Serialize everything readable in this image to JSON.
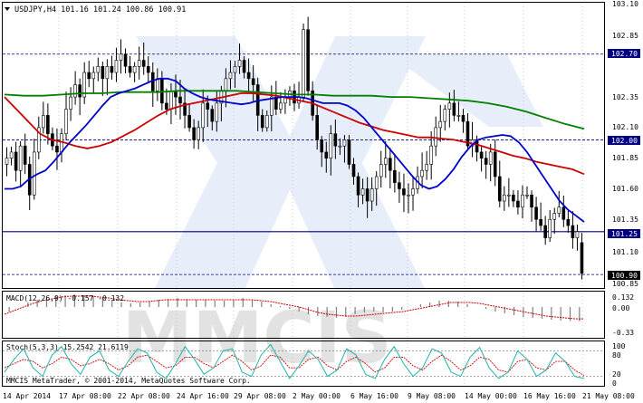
{
  "title": "USDJPY,H4  101.16 101.24 100.86 100.91",
  "watermark": "MMCIS",
  "copyright": "MMCIS MetaTrader, © 2001-2014, MetaQuotes Software Corp.",
  "price_labels": [
    "103.10",
    "102.85",
    "102.35",
    "102.10",
    "101.85",
    "101.60",
    "101.35",
    "101.10",
    "100.85"
  ],
  "tags": {
    "a": "102.70",
    "b": "102.00",
    "c": "101.25",
    "d": "100.90"
  },
  "macd_label": "MACD(12,26,9) -0.157 -0.132",
  "macd_scale": [
    "0.132",
    "0.00",
    "-0.33"
  ],
  "stoch_label": "Stoch(5,3,3) 15.2542 21.6119",
  "stoch_scale": [
    "100",
    "80",
    "20",
    "0"
  ],
  "time_labels": [
    "14 Apr 2014",
    "17 Apr 08:00",
    "22 Apr 08:00",
    "24 Apr 16:00",
    "29 Apr 08:00",
    "2 May 00:00",
    "6 May 16:00",
    "9 May 08:00",
    "14 May 00:00",
    "16 May 16:00",
    "21 May 08:00"
  ],
  "colors": {
    "bull": "#000000",
    "bear": "#000000",
    "ma_fast": "#0000cc",
    "ma_mid": "#cc0000",
    "ma_slow": "#008000",
    "level": "#000080",
    "macd_hist": "#808080",
    "macd_signal": "#cc0000",
    "stoch_main": "#20b2aa",
    "stoch_signal": "#cc0000"
  },
  "chart_data": {
    "type": "candlestick",
    "symbol": "USDJPY",
    "timeframe": "H4",
    "ylim": [
      100.79,
      103.12
    ],
    "levels": [
      102.7,
      102.0,
      101.25,
      100.9
    ],
    "last_candle": {
      "open": 101.16,
      "high": 101.24,
      "low": 100.86,
      "close": 100.91
    },
    "close": [
      101.85,
      101.9,
      101.75,
      101.95,
      101.8,
      101.55,
      101.9,
      102.1,
      102.2,
      102.05,
      101.95,
      101.9,
      102.05,
      102.25,
      102.35,
      102.45,
      102.35,
      102.55,
      102.5,
      102.55,
      102.6,
      102.5,
      102.6,
      102.55,
      102.65,
      102.7,
      102.6,
      102.55,
      102.6,
      102.65,
      102.6,
      102.55,
      102.4,
      102.5,
      102.3,
      102.25,
      102.4,
      102.35,
      102.3,
      102.2,
      102.1,
      102.0,
      102.1,
      102.3,
      102.25,
      102.15,
      102.3,
      102.4,
      102.5,
      102.55,
      102.6,
      102.65,
      102.55,
      102.5,
      102.45,
      102.2,
      102.1,
      102.2,
      102.35,
      102.25,
      102.3,
      102.35,
      102.4,
      102.3,
      102.35,
      102.9,
      102.4,
      102.2,
      102.0,
      101.9,
      101.85,
      102.05,
      101.95,
      101.95,
      102.0,
      101.8,
      101.7,
      101.55,
      101.6,
      101.5,
      101.6,
      101.7,
      101.8,
      101.85,
      101.75,
      101.65,
      101.6,
      101.55,
      101.55,
      101.6,
      101.7,
      101.75,
      101.8,
      101.95,
      102.1,
      102.15,
      102.25,
      102.3,
      102.2,
      102.2,
      102.15,
      101.95,
      102.0,
      101.9,
      101.85,
      101.8,
      101.9,
      101.7,
      101.5,
      101.55,
      101.55,
      101.5,
      101.45,
      101.55,
      101.55,
      101.45,
      101.35,
      101.3,
      101.2,
      101.35,
      101.4,
      101.45,
      101.35,
      101.3,
      101.2,
      101.25,
      100.91
    ],
    "ma_fast": [
      101.6,
      101.6,
      101.62,
      101.68,
      101.72,
      101.75,
      101.82,
      101.9,
      101.98,
      102.05,
      102.12,
      102.2,
      102.28,
      102.35,
      102.38,
      102.4,
      102.42,
      102.45,
      102.48,
      102.5,
      102.5,
      102.48,
      102.42,
      102.38,
      102.35,
      102.33,
      102.32,
      102.31,
      102.3,
      102.29,
      102.3,
      102.32,
      102.33,
      102.34,
      102.35,
      102.35,
      102.35,
      102.34,
      102.32,
      102.3,
      102.3,
      102.3,
      102.28,
      102.24,
      102.18,
      102.1,
      102.02,
      101.94,
      101.86,
      101.78,
      101.7,
      101.63,
      101.6,
      101.62,
      101.68,
      101.76,
      101.86,
      101.94,
      102.0,
      102.02,
      102.03,
      102.04,
      102.03,
      101.98,
      101.9,
      101.8,
      101.7,
      101.6,
      101.5,
      101.43,
      101.38,
      101.33
    ],
    "ma_mid": [
      102.35,
      102.25,
      102.15,
      102.05,
      102.0,
      101.98,
      101.95,
      101.93,
      101.95,
      101.98,
      102.03,
      102.08,
      102.14,
      102.2,
      102.25,
      102.28,
      102.3,
      102.32,
      102.34,
      102.36,
      102.38,
      102.38,
      102.37,
      102.36,
      102.34,
      102.32,
      102.3,
      102.26,
      102.22,
      102.18,
      102.14,
      102.11,
      102.08,
      102.06,
      102.04,
      102.02,
      102.02,
      102.01,
      102.0,
      101.98,
      101.96,
      101.93,
      101.9,
      101.87,
      101.85,
      101.82,
      101.8,
      101.78,
      101.76,
      101.72
    ],
    "ma_slow": [
      102.37,
      102.36,
      102.36,
      102.37,
      102.38,
      102.38,
      102.39,
      102.39,
      102.39,
      102.4,
      102.4,
      102.4,
      102.4,
      102.39,
      102.38,
      102.37,
      102.37,
      102.36,
      102.36,
      102.36,
      102.35,
      102.35,
      102.34,
      102.33,
      102.32,
      102.3,
      102.27,
      102.23,
      102.18,
      102.13,
      102.09
    ],
    "macd": [
      -0.05,
      0.0,
      0.05,
      0.08,
      0.1,
      0.12,
      0.13,
      0.14,
      0.13,
      0.12,
      0.1,
      0.08,
      0.05,
      0.04,
      0.05,
      0.06,
      0.08,
      0.09,
      0.1,
      0.09,
      0.08,
      0.08,
      0.07,
      0.07,
      0.08,
      0.1,
      0.08,
      0.06,
      0.03,
      0.01,
      -0.02,
      -0.05,
      -0.08,
      -0.1,
      -0.11,
      -0.12,
      -0.11,
      -0.08,
      -0.06,
      -0.05,
      -0.06,
      -0.05,
      -0.03,
      0.0,
      0.03,
      0.05,
      0.07,
      0.07,
      0.06,
      0.03,
      0.0,
      -0.02,
      -0.05,
      -0.07,
      -0.09,
      -0.11,
      -0.12,
      -0.13,
      -0.14,
      -0.15,
      -0.155,
      -0.157
    ],
    "macd_sig": [
      -0.08,
      -0.04,
      0.0,
      0.04,
      0.07,
      0.09,
      0.11,
      0.12,
      0.12,
      0.12,
      0.11,
      0.1,
      0.08,
      0.07,
      0.06,
      0.06,
      0.07,
      0.08,
      0.08,
      0.08,
      0.08,
      0.08,
      0.08,
      0.08,
      0.08,
      0.08,
      0.08,
      0.07,
      0.06,
      0.04,
      0.02,
      0.0,
      -0.03,
      -0.06,
      -0.08,
      -0.09,
      -0.1,
      -0.1,
      -0.09,
      -0.08,
      -0.07,
      -0.06,
      -0.05,
      -0.03,
      -0.01,
      0.01,
      0.03,
      0.05,
      0.05,
      0.05,
      0.04,
      0.02,
      0.0,
      -0.02,
      -0.04,
      -0.06,
      -0.08,
      -0.1,
      -0.11,
      -0.12,
      -0.13,
      -0.132
    ],
    "stoch_main": [
      30,
      60,
      85,
      40,
      20,
      70,
      90,
      50,
      25,
      65,
      80,
      35,
      20,
      55,
      85,
      75,
      30,
      15,
      50,
      90,
      60,
      25,
      40,
      80,
      85,
      30,
      20,
      70,
      95,
      55,
      15,
      45,
      80,
      60,
      20,
      35,
      85,
      70,
      25,
      15,
      60,
      90,
      50,
      20,
      40,
      85,
      75,
      30,
      20,
      65,
      88,
      40,
      15,
      30,
      80,
      60,
      20,
      35,
      75,
      55,
      20,
      15
    ],
    "stoch_signal": [
      40,
      50,
      60,
      55,
      40,
      50,
      65,
      60,
      45,
      50,
      60,
      50,
      35,
      45,
      65,
      70,
      55,
      40,
      45,
      65,
      65,
      50,
      40,
      55,
      70,
      55,
      35,
      45,
      70,
      65,
      40,
      40,
      60,
      65,
      45,
      35,
      55,
      65,
      50,
      30,
      40,
      65,
      65,
      45,
      35,
      55,
      70,
      55,
      35,
      45,
      65,
      60,
      35,
      30,
      55,
      60,
      40,
      35,
      55,
      55,
      35,
      22
    ]
  }
}
